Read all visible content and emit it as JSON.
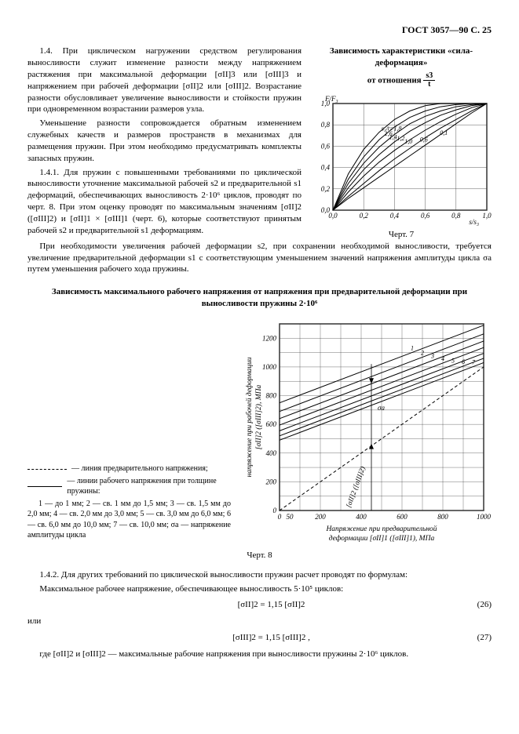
{
  "header": "ГОСТ 3057—90 С. 25",
  "para_1_4": "1.4. При циклическом нагружении средством регулирования выносливости служит изменение разности между напряжением растяжения при максимальной деформации [σII]3 или [σIII]3 и напряжением при рабочей деформации [σII]2 или [σIII]2. Возрастание разности обусловливает увеличение выносливости и стойкости пружин при одновременном возрастании размеров узла.",
  "para_1_4b": "Уменьшение разности сопровождается обратным изменением служебных качеств и размеров пространств в механизмах для размещения пружин. При этом необходимо предусматривать комплекты запасных пружин.",
  "para_1_4_1": "1.4.1. Для пружин с повышенными требованиями по циклической выносливости уточнение максимальной рабочей s2 и предварительной s1 деформаций, обеспечивающих выносливость 2·10⁶ циклов, проводят по черт. 8. При этом оценку проводят по максимальным значениям [σII]2 ([σIII]2) и [σII]1 × [σIII]1 (черт. 6), которые соответствуют принятым рабочей s2 и предварительной s1 деформациям.",
  "para_1_4_1b": "При необходимости увеличения рабочей деформации s2, при сохранении необходимой выносливости, требуется увеличение предварительной деформации s1 с соответствующим уменьшением значений напряжения амплитуды цикла σa путем уменьшения рабочего хода пружины.",
  "chart7": {
    "title_line1": "Зависимость характеристики «сила-деформация»",
    "title_line2_prefix": "от отношения",
    "frac_num": "s3",
    "frac_den": "t",
    "caption": "Черт. 7",
    "xlabel": "s/s₃",
    "ylabel": "F/F₃",
    "xlim": [
      0,
      1.0
    ],
    "ylim": [
      0,
      1.0
    ],
    "xticks": [
      0,
      0.2,
      0.4,
      0.6,
      0.8,
      1.0
    ],
    "yticks": [
      0,
      0.2,
      0.4,
      0.6,
      0.8,
      1.0
    ],
    "curve_labels": [
      "1,8",
      "1,6",
      "1,4",
      "1,2",
      "1,0",
      "0,6",
      "0,1"
    ],
    "label_prefix": "s₃/t=",
    "curves": [
      [
        [
          0,
          0
        ],
        [
          0.1,
          0.34
        ],
        [
          0.2,
          0.57
        ],
        [
          0.3,
          0.73
        ],
        [
          0.4,
          0.85
        ],
        [
          0.5,
          0.93
        ],
        [
          0.6,
          0.98
        ],
        [
          0.7,
          1.0
        ],
        [
          0.8,
          1.0
        ],
        [
          0.9,
          1.0
        ],
        [
          1.0,
          1.0
        ]
      ],
      [
        [
          0,
          0
        ],
        [
          0.1,
          0.29
        ],
        [
          0.2,
          0.5
        ],
        [
          0.3,
          0.66
        ],
        [
          0.4,
          0.78
        ],
        [
          0.5,
          0.87
        ],
        [
          0.6,
          0.93
        ],
        [
          0.7,
          0.97
        ],
        [
          0.8,
          0.99
        ],
        [
          0.9,
          1.0
        ],
        [
          1.0,
          1.0
        ]
      ],
      [
        [
          0,
          0
        ],
        [
          0.1,
          0.25
        ],
        [
          0.2,
          0.44
        ],
        [
          0.3,
          0.59
        ],
        [
          0.4,
          0.71
        ],
        [
          0.5,
          0.81
        ],
        [
          0.6,
          0.88
        ],
        [
          0.7,
          0.93
        ],
        [
          0.8,
          0.97
        ],
        [
          0.9,
          0.99
        ],
        [
          1.0,
          1.0
        ]
      ],
      [
        [
          0,
          0
        ],
        [
          0.1,
          0.21
        ],
        [
          0.2,
          0.38
        ],
        [
          0.3,
          0.52
        ],
        [
          0.4,
          0.64
        ],
        [
          0.5,
          0.74
        ],
        [
          0.6,
          0.82
        ],
        [
          0.7,
          0.89
        ],
        [
          0.8,
          0.94
        ],
        [
          0.9,
          0.98
        ],
        [
          1.0,
          1.0
        ]
      ],
      [
        [
          0,
          0
        ],
        [
          0.1,
          0.17
        ],
        [
          0.2,
          0.32
        ],
        [
          0.3,
          0.45
        ],
        [
          0.4,
          0.56
        ],
        [
          0.5,
          0.66
        ],
        [
          0.6,
          0.75
        ],
        [
          0.7,
          0.83
        ],
        [
          0.8,
          0.9
        ],
        [
          0.9,
          0.96
        ],
        [
          1.0,
          1.0
        ]
      ],
      [
        [
          0,
          0
        ],
        [
          0.1,
          0.13
        ],
        [
          0.2,
          0.25
        ],
        [
          0.3,
          0.37
        ],
        [
          0.4,
          0.48
        ],
        [
          0.5,
          0.58
        ],
        [
          0.6,
          0.68
        ],
        [
          0.7,
          0.77
        ],
        [
          0.8,
          0.85
        ],
        [
          0.9,
          0.93
        ],
        [
          1.0,
          1.0
        ]
      ],
      [
        [
          0,
          0
        ],
        [
          0.1,
          0.11
        ],
        [
          0.2,
          0.21
        ],
        [
          0.3,
          0.31
        ],
        [
          0.4,
          0.41
        ],
        [
          0.5,
          0.51
        ],
        [
          0.6,
          0.61
        ],
        [
          0.7,
          0.71
        ],
        [
          0.8,
          0.81
        ],
        [
          0.9,
          0.91
        ],
        [
          1.0,
          1.0
        ]
      ]
    ],
    "bg": "#ffffff",
    "grid_color": "#333333",
    "line_color": "#000000"
  },
  "section2_title": "Зависимость максимального рабочего напряжения от напряжения при предварительной деформации при выносливости пружины 2·10⁶",
  "chart8": {
    "caption": "Черт. 8",
    "xlabel": "Напряжение при предварительной деформации [σII]1 ([σIII]1), МПа",
    "ylabel": "напряжение при рабочей деформации [σII]2 ([σIII]2), МПа",
    "xlim": [
      0,
      1000
    ],
    "ylim": [
      0,
      1300
    ],
    "xticks": [
      0,
      50,
      200,
      400,
      600,
      800,
      1000
    ],
    "yticks": [
      0,
      200,
      400,
      600,
      800,
      1000,
      1200
    ],
    "grid_color": "#333333",
    "line_color": "#000000",
    "solid_lines": [
      [
        [
          0,
          750
        ],
        [
          1000,
          1290
        ]
      ],
      [
        [
          0,
          690
        ],
        [
          1000,
          1230
        ]
      ],
      [
        [
          0,
          640
        ],
        [
          1000,
          1180
        ]
      ],
      [
        [
          0,
          595
        ],
        [
          1000,
          1135
        ]
      ],
      [
        [
          0,
          555
        ],
        [
          1000,
          1095
        ]
      ],
      [
        [
          0,
          520
        ],
        [
          1000,
          1060
        ]
      ],
      [
        [
          0,
          490
        ],
        [
          1000,
          1030
        ]
      ]
    ],
    "dashed_line": [
      [
        0,
        0
      ],
      [
        1000,
        1000
      ]
    ],
    "vline_x": 450,
    "annot_left": "[σII]2 ([σIII]2)",
    "annot_right": "σa"
  },
  "legend": {
    "dashed": "— линия предварительного напряжения;",
    "solid": "— линии рабочего напряжения при толщине пружины:",
    "items": "1 — до 1 мм; 2 — св. 1 мм до 1,5 мм; 3 — св. 1,5 мм до 2,0 мм; 4 — св. 2,0 мм до 3,0 мм; 5 — св. 3,0 мм до 6,0 мм; 6 — св. 6,0 мм до 10,0 мм; 7 — св. 10,0 мм; σa — напряжение амплитуды цикла"
  },
  "para_1_4_2": "1.4.2. Для других требований по циклической выносливости пружин расчет проводят по формулам:",
  "para_1_4_2b": "Максимальное рабочее напряжение, обеспечивающее выносливость 5·10⁵ циклов:",
  "formula26": "[σII]2 = 1,15 [σII]2",
  "formula26_num": "(26)",
  "ili": "или",
  "formula27": "[σIII]2 = 1,15 [σIII]2 ,",
  "formula27_num": "(27)",
  "para_footer": "где [σII]2 и [σIII]2 — максимальные рабочие напряжения при выносливости пружины 2·10⁶ циклов."
}
